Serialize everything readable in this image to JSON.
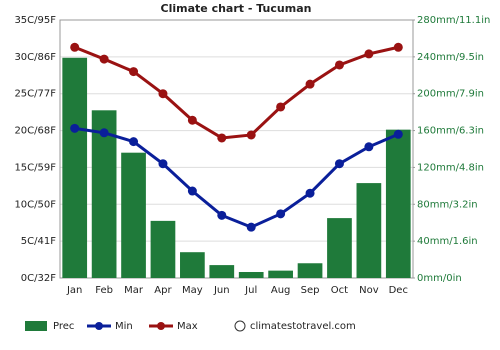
{
  "chart_data": {
    "type": "combo",
    "title": "Climate chart - Tucuman",
    "categories": [
      "Jan",
      "Feb",
      "Mar",
      "Apr",
      "May",
      "Jun",
      "Jul",
      "Aug",
      "Sep",
      "Oct",
      "Nov",
      "Dec"
    ],
    "series": [
      {
        "name": "Prec",
        "type": "bar",
        "axis": "y2",
        "color": "#1f7a3a",
        "values": [
          239,
          182,
          136,
          62,
          28,
          14,
          6.5,
          8,
          16,
          65,
          103,
          161
        ]
      },
      {
        "name": "Min",
        "type": "line",
        "color": "#0a1f9a",
        "values": [
          20.3,
          19.7,
          18.5,
          15.5,
          11.8,
          8.5,
          6.9,
          8.7,
          11.5,
          15.5,
          17.8,
          19.5
        ]
      },
      {
        "name": "Max",
        "type": "line",
        "color": "#9a1212",
        "values": [
          31.3,
          29.7,
          28,
          25,
          21.4,
          19,
          19.4,
          23.2,
          26.3,
          28.9,
          30.4,
          31.3
        ]
      }
    ],
    "ylim": [
      0,
      35
    ],
    "yticks": [
      {
        "value": 0,
        "label": "0C/32F"
      },
      {
        "value": 5,
        "label": "5C/41F"
      },
      {
        "value": 10,
        "label": "10C/50F"
      },
      {
        "value": 15,
        "label": "15C/59F"
      },
      {
        "value": 20,
        "label": "20C/68F"
      },
      {
        "value": 25,
        "label": "25C/77F"
      },
      {
        "value": 30,
        "label": "30C/86F"
      },
      {
        "value": 35,
        "label": "35C/95F"
      }
    ],
    "y2lim": [
      0,
      280
    ],
    "y2ticks": [
      {
        "value": 0,
        "label": "0mm/0in"
      },
      {
        "value": 40,
        "label": "40mm/1.6in"
      },
      {
        "value": 80,
        "label": "80mm/3.2in"
      },
      {
        "value": 120,
        "label": "120mm/4.8in"
      },
      {
        "value": 160,
        "label": "160mm/6.3in"
      },
      {
        "value": 200,
        "label": "200mm/7.9in"
      },
      {
        "value": 240,
        "label": "240mm/9.5in"
      },
      {
        "value": 280,
        "label": "280mm/11.1in"
      }
    ],
    "grid": true,
    "watermark": "climatestotravel.com"
  }
}
